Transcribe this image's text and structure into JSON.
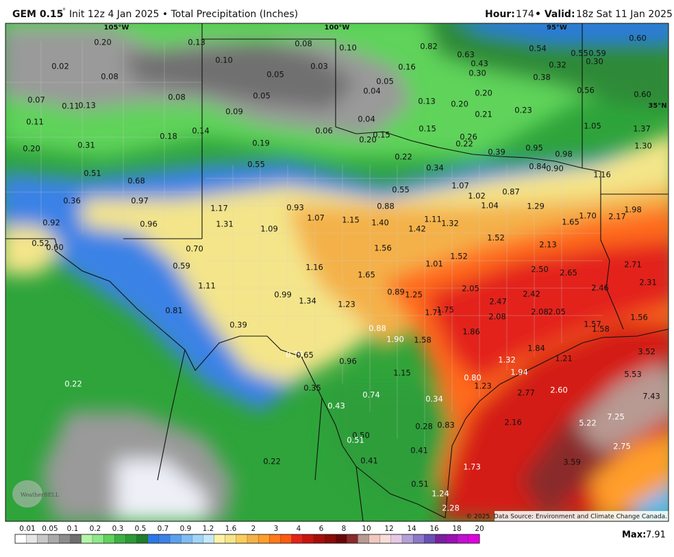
{
  "header": {
    "model": "GEM 0.15",
    "degree": "°",
    "info": "Init 12z 4 Jan 2025 • Total Precipitation (Inches)",
    "hour_label": "Hour:",
    "hour": "174",
    "valid_label": "• Valid:",
    "valid": "18z Sat 11 Jan 2025"
  },
  "map": {
    "grid_labels": [
      "105°W",
      "100°W",
      "95°W",
      "35°N"
    ],
    "logo": "WeatherBELL",
    "copyright": "© 2025. Data Source: Environment and Climate Change Canada.",
    "labels": [
      "0.20",
      "0.13",
      "0.08",
      "0.10",
      "0.10",
      "0.82",
      "0.63",
      "0.54",
      "0.55",
      "0.59",
      "0.60",
      "0.02",
      "0.08",
      "0.05",
      "0.03",
      "0.16",
      "0.43",
      "0.30",
      "0.32",
      "0.30",
      "0.38",
      "0.05",
      "0.04",
      "0.07",
      "0.08",
      "0.05",
      "0.13",
      "0.20",
      "0.56",
      "0.60",
      "0.11",
      "0.13",
      "0.09",
      "0.20",
      "0.21",
      "0.23",
      "0.11",
      "0.04",
      "0.15",
      "1.05",
      "1.37",
      "0.14",
      "0.18",
      "0.06",
      "0.15",
      "0.20",
      "0.26",
      "0.22",
      "0.20",
      "0.31",
      "0.19",
      "1.30",
      "0.39",
      "0.95",
      "0.98",
      "0.22",
      "0.34",
      "0.55",
      "0.84",
      "0.90",
      "0.51",
      "0.68",
      "1.16",
      "1.07",
      "0.55",
      "0.87",
      "1.02",
      "0.36",
      "0.97",
      "0.88",
      "1.04",
      "1.29",
      "1.17",
      "0.93",
      "1.98",
      "2.17",
      "1.70",
      "1.07",
      "1.15",
      "1.40",
      "1.11",
      "1.32",
      "1.65",
      "0.92",
      "0.96",
      "1.31",
      "1.09",
      "1.42",
      "1.52",
      "0.52",
      "0.60",
      "0.70",
      "1.56",
      "2.13",
      "1.52",
      "1.01",
      "0.59",
      "1.16",
      "2.71",
      "2.50",
      "2.65",
      "1.65",
      "2.31",
      "2.46",
      "1.11",
      "2.05",
      "0.89",
      "1.25",
      "2.42",
      "0.99",
      "1.34",
      "2.47",
      "1.23",
      "0.81",
      "1.75",
      "1.71",
      "2.08",
      "2.05",
      "2.08",
      "1.56",
      "1.57",
      "1.58",
      "0.39",
      "0.88",
      "1.86",
      "1.90",
      "1.58",
      "1.84",
      "0.76",
      "0.65",
      "3.52",
      "0.96",
      "1.32",
      "1.21",
      "1.94",
      "1.15",
      "5.53",
      "0.80",
      "0.22",
      "0.35",
      "1.23",
      "2.77",
      "2.60",
      "0.74",
      "0.34",
      "7.43",
      "0.43",
      "7.25",
      "2.16",
      "5.22",
      "0.28",
      "0.83",
      "0.50",
      "0.51",
      "0.41",
      "2.75",
      "0.41",
      "3.59",
      "0.22",
      "1.73",
      "0.51",
      "1.24",
      "2.28"
    ]
  },
  "colorbar": {
    "labels": [
      "0.01",
      "0.05",
      "0.1",
      "0.2",
      "0.3",
      "0.5",
      "0.7",
      "0.9",
      "1.2",
      "1.6",
      "2",
      "3",
      "4",
      "6",
      "8",
      "10",
      "12",
      "14",
      "16",
      "18",
      "20"
    ]
  },
  "footer": {
    "max_label": "Max:",
    "max": "7.91"
  }
}
